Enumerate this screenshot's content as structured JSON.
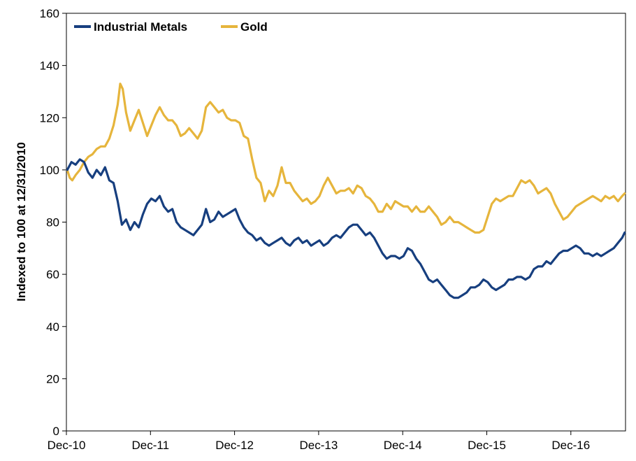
{
  "chart_data": {
    "type": "line",
    "title": "",
    "xlabel": "",
    "ylabel": "Indexed to 100 at 12/31/2010",
    "x_tick_labels": [
      "Dec-10",
      "Dec-11",
      "Dec-12",
      "Dec-13",
      "Dec-14",
      "Dec-15",
      "Dec-16"
    ],
    "y_tick_labels": [
      "0",
      "20",
      "40",
      "60",
      "80",
      "100",
      "120",
      "140",
      "160"
    ],
    "ylim": [
      0,
      160
    ],
    "x_range_years": [
      2010.99,
      2017.64
    ],
    "legend_position": "top-left",
    "grid": false,
    "series": [
      {
        "name": "Industrial Metals",
        "color": "#173f7f",
        "points": [
          [
            2011.0,
            100
          ],
          [
            2011.05,
            103
          ],
          [
            2011.1,
            102
          ],
          [
            2011.15,
            104
          ],
          [
            2011.2,
            103
          ],
          [
            2011.25,
            99
          ],
          [
            2011.3,
            97
          ],
          [
            2011.35,
            100
          ],
          [
            2011.4,
            98
          ],
          [
            2011.45,
            101
          ],
          [
            2011.5,
            96
          ],
          [
            2011.55,
            95
          ],
          [
            2011.6,
            88
          ],
          [
            2011.65,
            79
          ],
          [
            2011.7,
            81
          ],
          [
            2011.75,
            77
          ],
          [
            2011.8,
            80
          ],
          [
            2011.85,
            78
          ],
          [
            2011.9,
            83
          ],
          [
            2011.95,
            87
          ],
          [
            2012.0,
            89
          ],
          [
            2012.05,
            88
          ],
          [
            2012.1,
            90
          ],
          [
            2012.15,
            86
          ],
          [
            2012.2,
            84
          ],
          [
            2012.25,
            85
          ],
          [
            2012.3,
            80
          ],
          [
            2012.35,
            78
          ],
          [
            2012.4,
            77
          ],
          [
            2012.45,
            76
          ],
          [
            2012.5,
            75
          ],
          [
            2012.55,
            77
          ],
          [
            2012.6,
            79
          ],
          [
            2012.65,
            85
          ],
          [
            2012.7,
            80
          ],
          [
            2012.75,
            81
          ],
          [
            2012.8,
            84
          ],
          [
            2012.85,
            82
          ],
          [
            2012.9,
            83
          ],
          [
            2012.95,
            84
          ],
          [
            2013.0,
            85
          ],
          [
            2013.05,
            81
          ],
          [
            2013.1,
            78
          ],
          [
            2013.15,
            76
          ],
          [
            2013.2,
            75
          ],
          [
            2013.25,
            73
          ],
          [
            2013.3,
            74
          ],
          [
            2013.35,
            72
          ],
          [
            2013.4,
            71
          ],
          [
            2013.45,
            72
          ],
          [
            2013.5,
            73
          ],
          [
            2013.55,
            74
          ],
          [
            2013.6,
            72
          ],
          [
            2013.65,
            71
          ],
          [
            2013.7,
            73
          ],
          [
            2013.75,
            74
          ],
          [
            2013.8,
            72
          ],
          [
            2013.85,
            73
          ],
          [
            2013.9,
            71
          ],
          [
            2013.95,
            72
          ],
          [
            2014.0,
            73
          ],
          [
            2014.05,
            71
          ],
          [
            2014.1,
            72
          ],
          [
            2014.15,
            74
          ],
          [
            2014.2,
            75
          ],
          [
            2014.25,
            74
          ],
          [
            2014.3,
            76
          ],
          [
            2014.35,
            78
          ],
          [
            2014.4,
            79
          ],
          [
            2014.45,
            79
          ],
          [
            2014.5,
            77
          ],
          [
            2014.55,
            75
          ],
          [
            2014.6,
            76
          ],
          [
            2014.65,
            74
          ],
          [
            2014.7,
            71
          ],
          [
            2014.75,
            68
          ],
          [
            2014.8,
            66
          ],
          [
            2014.85,
            67
          ],
          [
            2014.9,
            67
          ],
          [
            2014.95,
            66
          ],
          [
            2015.0,
            67
          ],
          [
            2015.05,
            70
          ],
          [
            2015.1,
            69
          ],
          [
            2015.15,
            66
          ],
          [
            2015.2,
            64
          ],
          [
            2015.25,
            61
          ],
          [
            2015.3,
            58
          ],
          [
            2015.35,
            57
          ],
          [
            2015.4,
            58
          ],
          [
            2015.45,
            56
          ],
          [
            2015.5,
            54
          ],
          [
            2015.55,
            52
          ],
          [
            2015.6,
            51
          ],
          [
            2015.65,
            51
          ],
          [
            2015.7,
            52
          ],
          [
            2015.75,
            53
          ],
          [
            2015.8,
            55
          ],
          [
            2015.85,
            55
          ],
          [
            2015.9,
            56
          ],
          [
            2015.95,
            58
          ],
          [
            2016.0,
            57
          ],
          [
            2016.05,
            55
          ],
          [
            2016.1,
            54
          ],
          [
            2016.15,
            55
          ],
          [
            2016.2,
            56
          ],
          [
            2016.25,
            58
          ],
          [
            2016.3,
            58
          ],
          [
            2016.35,
            59
          ],
          [
            2016.4,
            59
          ],
          [
            2016.45,
            58
          ],
          [
            2016.5,
            59
          ],
          [
            2016.55,
            62
          ],
          [
            2016.6,
            63
          ],
          [
            2016.65,
            63
          ],
          [
            2016.7,
            65
          ],
          [
            2016.75,
            64
          ],
          [
            2016.8,
            66
          ],
          [
            2016.85,
            68
          ],
          [
            2016.9,
            69
          ],
          [
            2016.95,
            69
          ],
          [
            2017.0,
            70
          ],
          [
            2017.05,
            71
          ],
          [
            2017.1,
            70
          ],
          [
            2017.15,
            68
          ],
          [
            2017.2,
            68
          ],
          [
            2017.25,
            67
          ],
          [
            2017.3,
            68
          ],
          [
            2017.35,
            67
          ],
          [
            2017.4,
            68
          ],
          [
            2017.45,
            69
          ],
          [
            2017.5,
            70
          ],
          [
            2017.55,
            72
          ],
          [
            2017.6,
            74
          ],
          [
            2017.63,
            76
          ]
        ]
      },
      {
        "name": "Gold",
        "color": "#e6b53c",
        "points": [
          [
            2011.0,
            100
          ],
          [
            2011.03,
            97
          ],
          [
            2011.06,
            96
          ],
          [
            2011.1,
            98
          ],
          [
            2011.15,
            100
          ],
          [
            2011.2,
            103
          ],
          [
            2011.25,
            105
          ],
          [
            2011.3,
            106
          ],
          [
            2011.35,
            108
          ],
          [
            2011.4,
            109
          ],
          [
            2011.45,
            109
          ],
          [
            2011.5,
            112
          ],
          [
            2011.55,
            117
          ],
          [
            2011.6,
            125
          ],
          [
            2011.63,
            133
          ],
          [
            2011.66,
            131
          ],
          [
            2011.7,
            122
          ],
          [
            2011.75,
            115
          ],
          [
            2011.8,
            119
          ],
          [
            2011.85,
            123
          ],
          [
            2011.9,
            118
          ],
          [
            2011.95,
            113
          ],
          [
            2012.0,
            117
          ],
          [
            2012.05,
            121
          ],
          [
            2012.1,
            124
          ],
          [
            2012.15,
            121
          ],
          [
            2012.2,
            119
          ],
          [
            2012.25,
            119
          ],
          [
            2012.3,
            117
          ],
          [
            2012.35,
            113
          ],
          [
            2012.4,
            114
          ],
          [
            2012.45,
            116
          ],
          [
            2012.5,
            114
          ],
          [
            2012.55,
            112
          ],
          [
            2012.6,
            115
          ],
          [
            2012.65,
            124
          ],
          [
            2012.7,
            126
          ],
          [
            2012.75,
            124
          ],
          [
            2012.8,
            122
          ],
          [
            2012.85,
            123
          ],
          [
            2012.9,
            120
          ],
          [
            2012.95,
            119
          ],
          [
            2013.0,
            119
          ],
          [
            2013.05,
            118
          ],
          [
            2013.1,
            113
          ],
          [
            2013.15,
            112
          ],
          [
            2013.2,
            104
          ],
          [
            2013.25,
            97
          ],
          [
            2013.3,
            95
          ],
          [
            2013.35,
            88
          ],
          [
            2013.4,
            92
          ],
          [
            2013.45,
            90
          ],
          [
            2013.5,
            94
          ],
          [
            2013.55,
            101
          ],
          [
            2013.6,
            95
          ],
          [
            2013.65,
            95
          ],
          [
            2013.7,
            92
          ],
          [
            2013.75,
            90
          ],
          [
            2013.8,
            88
          ],
          [
            2013.85,
            89
          ],
          [
            2013.9,
            87
          ],
          [
            2013.95,
            88
          ],
          [
            2014.0,
            90
          ],
          [
            2014.05,
            94
          ],
          [
            2014.1,
            97
          ],
          [
            2014.15,
            94
          ],
          [
            2014.2,
            91
          ],
          [
            2014.25,
            92
          ],
          [
            2014.3,
            92
          ],
          [
            2014.35,
            93
          ],
          [
            2014.4,
            91
          ],
          [
            2014.45,
            94
          ],
          [
            2014.5,
            93
          ],
          [
            2014.55,
            90
          ],
          [
            2014.6,
            89
          ],
          [
            2014.65,
            87
          ],
          [
            2014.7,
            84
          ],
          [
            2014.75,
            84
          ],
          [
            2014.8,
            87
          ],
          [
            2014.85,
            85
          ],
          [
            2014.9,
            88
          ],
          [
            2014.95,
            87
          ],
          [
            2015.0,
            86
          ],
          [
            2015.05,
            86
          ],
          [
            2015.1,
            84
          ],
          [
            2015.15,
            86
          ],
          [
            2015.2,
            84
          ],
          [
            2015.25,
            84
          ],
          [
            2015.3,
            86
          ],
          [
            2015.35,
            84
          ],
          [
            2015.4,
            82
          ],
          [
            2015.45,
            79
          ],
          [
            2015.5,
            80
          ],
          [
            2015.55,
            82
          ],
          [
            2015.6,
            80
          ],
          [
            2015.65,
            80
          ],
          [
            2015.7,
            79
          ],
          [
            2015.75,
            78
          ],
          [
            2015.8,
            77
          ],
          [
            2015.85,
            76
          ],
          [
            2015.9,
            76
          ],
          [
            2015.95,
            77
          ],
          [
            2016.0,
            82
          ],
          [
            2016.05,
            87
          ],
          [
            2016.1,
            89
          ],
          [
            2016.15,
            88
          ],
          [
            2016.2,
            89
          ],
          [
            2016.25,
            90
          ],
          [
            2016.3,
            90
          ],
          [
            2016.35,
            93
          ],
          [
            2016.4,
            96
          ],
          [
            2016.45,
            95
          ],
          [
            2016.5,
            96
          ],
          [
            2016.55,
            94
          ],
          [
            2016.6,
            91
          ],
          [
            2016.65,
            92
          ],
          [
            2016.7,
            93
          ],
          [
            2016.75,
            91
          ],
          [
            2016.8,
            87
          ],
          [
            2016.85,
            84
          ],
          [
            2016.9,
            81
          ],
          [
            2016.95,
            82
          ],
          [
            2017.0,
            84
          ],
          [
            2017.05,
            86
          ],
          [
            2017.1,
            87
          ],
          [
            2017.15,
            88
          ],
          [
            2017.2,
            89
          ],
          [
            2017.25,
            90
          ],
          [
            2017.3,
            89
          ],
          [
            2017.35,
            88
          ],
          [
            2017.4,
            90
          ],
          [
            2017.45,
            89
          ],
          [
            2017.5,
            90
          ],
          [
            2017.55,
            88
          ],
          [
            2017.6,
            90
          ],
          [
            2017.63,
            91
          ]
        ]
      }
    ]
  }
}
